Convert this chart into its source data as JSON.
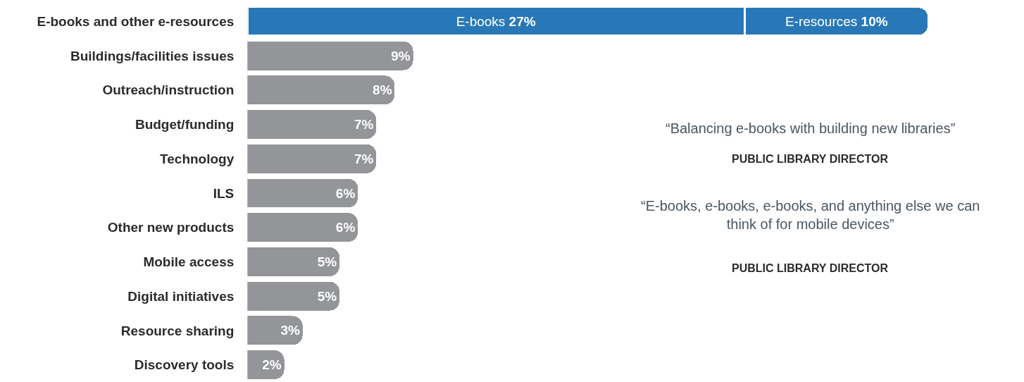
{
  "chart_data": {
    "type": "bar",
    "orientation": "horizontal",
    "stacked": true,
    "tick_labels": "y",
    "legend": false,
    "categories": [
      "E-books and other e-resources",
      "Buildings/facilities issues",
      "Outreach/instruction",
      "Budget/funding",
      "Technology",
      "ILS",
      "Other new products",
      "Mobile access",
      "Digital initiatives",
      "Resource sharing",
      "Discovery tools"
    ],
    "series": [
      {
        "name": "E-books",
        "color": "#2878b8",
        "values": [
          27,
          null,
          null,
          null,
          null,
          null,
          null,
          null,
          null,
          null,
          null
        ],
        "value_labels": [
          "27%",
          null,
          null,
          null,
          null,
          null,
          null,
          null,
          null,
          null,
          null
        ]
      },
      {
        "name": "E-resources",
        "color": "#2878b8",
        "values": [
          10,
          null,
          null,
          null,
          null,
          null,
          null,
          null,
          null,
          null,
          null
        ],
        "value_labels": [
          "10%",
          null,
          null,
          null,
          null,
          null,
          null,
          null,
          null,
          null,
          null
        ]
      },
      {
        "color": "#939598",
        "values": [
          null,
          9,
          8,
          7,
          7,
          6,
          6,
          5,
          5,
          3,
          2
        ],
        "value_labels": [
          null,
          "9%",
          "8%",
          "7%",
          "7%",
          "6%",
          "6%",
          "5%",
          "5%",
          "3%",
          "2%"
        ]
      }
    ],
    "annotations": [
      "“Balancing e-books with building new libraries”",
      "PUBLIC LIBRARY DIRECTOR",
      "“E-books, e-books, e-books, and anything else we can think of for mobile devices”",
      "PUBLIC LIBRARY DIRECTOR"
    ]
  }
}
